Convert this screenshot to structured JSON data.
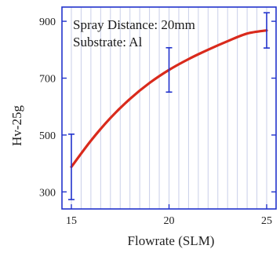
{
  "chart_data": {
    "type": "line",
    "title": "",
    "annotations": [
      "Spray Distance: 20mm",
      "Substrate: Al"
    ],
    "xlabel": "Flowrate (SLM)",
    "ylabel": "Hv-25g",
    "xlim": [
      15,
      25
    ],
    "ylim": [
      240,
      950
    ],
    "xticks": [
      15,
      20,
      25
    ],
    "yticks": [
      300,
      500,
      700,
      900
    ],
    "grid": "vertical",
    "legend": "none",
    "curve": {
      "x": [
        15,
        16,
        17,
        18,
        19,
        20,
        21,
        22,
        23,
        24,
        25
      ],
      "y": [
        388,
        480,
        560,
        627,
        683,
        729,
        767,
        800,
        830,
        857,
        868
      ],
      "color": "#d92a1c"
    },
    "error_bars": {
      "x": [
        15,
        20,
        25
      ],
      "y": [
        388,
        729,
        868
      ],
      "yerr": [
        115,
        78,
        62
      ],
      "color": "#2233cc"
    },
    "colors": {
      "frame": "#2233cc",
      "grid": "#c9cfe9"
    }
  }
}
